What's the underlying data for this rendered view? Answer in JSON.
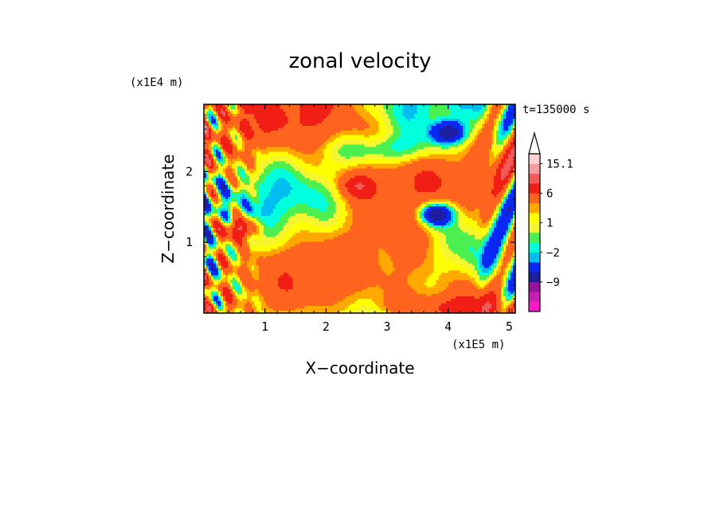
{
  "chart_data": {
    "type": "heatmap",
    "title": "zonal velocity",
    "xlabel": "X−coordinate",
    "ylabel": "Z−coordinate",
    "x_unit": "(x1E5 m)",
    "y_unit": "(x1E4 m)",
    "time_label": "t=135000 s",
    "xlim": [
      0.0,
      5.1
    ],
    "ylim": [
      0.0,
      2.95
    ],
    "x_ticks": [
      1,
      2,
      3,
      4,
      5
    ],
    "y_ticks": [
      1,
      2
    ],
    "colorbar": {
      "levels": [
        -15,
        -12,
        -9,
        -6,
        -3,
        -2,
        -1,
        0,
        1,
        2,
        3,
        6,
        9,
        12,
        15.1
      ],
      "colors": [
        "#ff19c8",
        "#c81eb4",
        "#96149b",
        "#1e1ea0",
        "#0a28f5",
        "#00bef0",
        "#00ffdc",
        "#4bf050",
        "#f5f532",
        "#ffff00",
        "#ffa800",
        "#ff641e",
        "#f01e14",
        "#f05a5a",
        "#f0a0a0",
        "#ffd2d2"
      ],
      "labels": [
        "15.1",
        "6",
        "1",
        "−2",
        "−9"
      ],
      "extend": "max"
    },
    "field_features": [
      {
        "x": 3.8,
        "z": 1.4,
        "value": -12,
        "kind": "minimum"
      },
      {
        "x": 4.0,
        "z": 2.55,
        "value": -10,
        "kind": "minimum"
      },
      {
        "x": 2.5,
        "z": 1.8,
        "value": 5,
        "kind": "maximum"
      },
      {
        "x": 0.6,
        "z": 1.2,
        "value": 9,
        "kind": "maximum"
      }
    ]
  }
}
